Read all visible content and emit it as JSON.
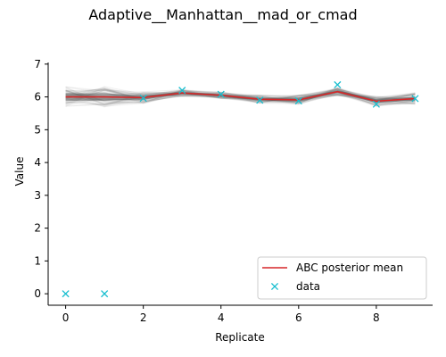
{
  "chart_data": {
    "type": "line",
    "title": "Adaptive__Manhattan__mad_or_cmad",
    "xlabel": "Replicate",
    "ylabel": "Value",
    "xlim": [
      -0.45,
      9.45
    ],
    "ylim": [
      -0.35,
      7.05
    ],
    "xticks": [
      0,
      2,
      4,
      6,
      8
    ],
    "yticks": [
      0,
      1,
      2,
      3,
      4,
      5,
      6,
      7
    ],
    "x": [
      0,
      1,
      2,
      3,
      4,
      5,
      6,
      7,
      8,
      9
    ],
    "series": [
      {
        "name": "ABC posterior mean",
        "kind": "line",
        "color": "#d62728",
        "values": [
          6.0,
          6.0,
          5.98,
          6.12,
          6.05,
          5.93,
          5.91,
          6.16,
          5.87,
          5.95
        ]
      },
      {
        "name": "data",
        "kind": "marker",
        "marker": "x",
        "color": "#17becf",
        "values": [
          0.0,
          0.0,
          5.96,
          6.2,
          6.08,
          5.9,
          5.88,
          6.37,
          5.78,
          5.95
        ]
      }
    ],
    "posterior_band": {
      "color": "#555555",
      "center": [
        6.0,
        6.0,
        5.98,
        6.12,
        6.05,
        5.93,
        5.91,
        6.16,
        5.87,
        5.95
      ],
      "spread": [
        0.32,
        0.32,
        0.18,
        0.1,
        0.1,
        0.12,
        0.15,
        0.12,
        0.15,
        0.18
      ]
    },
    "legend": {
      "position": "lower-right"
    },
    "grid": false
  }
}
